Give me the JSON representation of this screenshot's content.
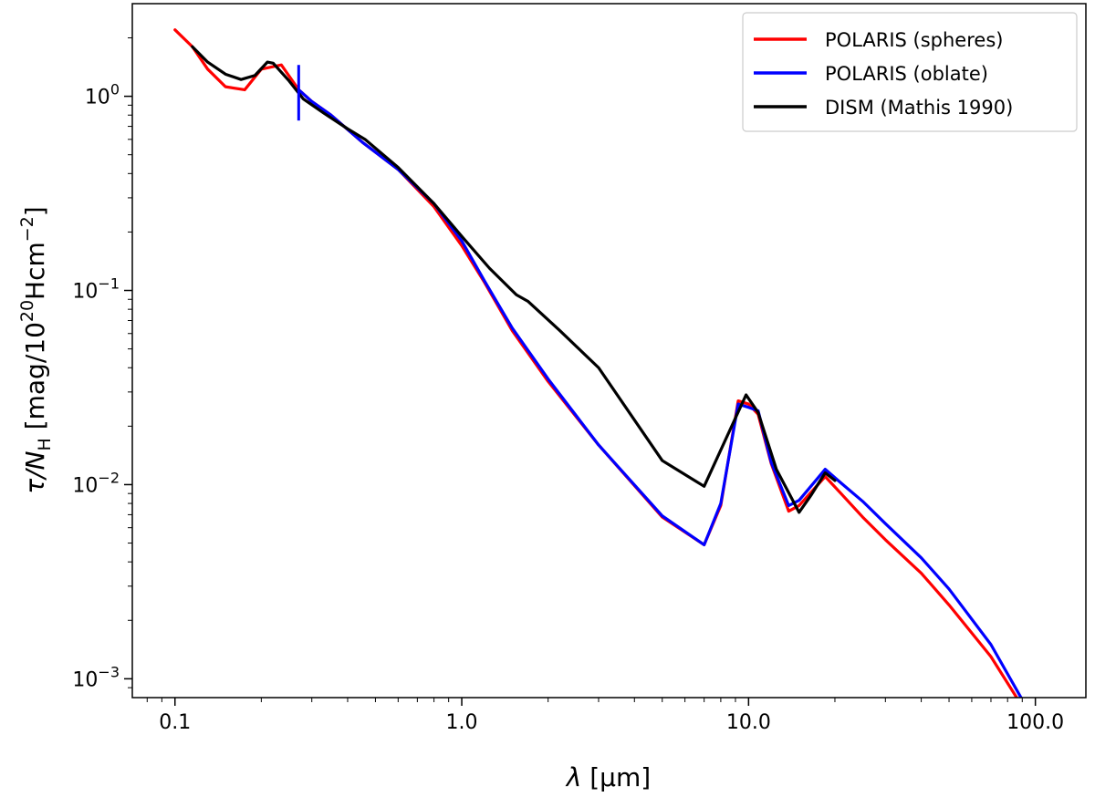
{
  "chart_data": {
    "type": "line",
    "title": "",
    "xlabel_symbol": "λ",
    "xlabel_unit": " [μm]",
    "ylabel_symbol": "τ/",
    "ylabel_N": "N",
    "ylabel_sub": "H",
    "ylabel_unit_a": " [mag/10",
    "ylabel_exp20": "20",
    "ylabel_unit_b": "Hcm",
    "ylabel_exp_m2": "−2",
    "ylabel_close": "]",
    "xscale": "log",
    "yscale": "log",
    "xlim": [
      0.071,
      150
    ],
    "ylim": [
      0.0008,
      3.0
    ],
    "grid": false,
    "legend_position": "top-right",
    "x_ticks": [
      {
        "value": 0.1,
        "label": "0.1"
      },
      {
        "value": 1.0,
        "label": "1.0"
      },
      {
        "value": 10.0,
        "label": "10.0"
      },
      {
        "value": 100.0,
        "label": "100.0"
      }
    ],
    "y_ticks": [
      {
        "value": 1.0,
        "base": "10",
        "exp": "0"
      },
      {
        "value": 0.1,
        "base": "10",
        "exp": "−1"
      },
      {
        "value": 0.01,
        "base": "10",
        "exp": "−2"
      },
      {
        "value": 0.001,
        "base": "10",
        "exp": "−3"
      }
    ],
    "series": [
      {
        "name": "POLARIS (spheres)",
        "color": "#ff0000",
        "x": [
          0.1,
          0.115,
          0.13,
          0.15,
          0.175,
          0.2,
          0.235,
          0.27,
          0.3,
          0.35,
          0.45,
          0.6,
          0.8,
          1.0,
          1.2,
          1.5,
          2.0,
          3.0,
          5.0,
          7.0,
          8.0,
          9.2,
          10.0,
          10.8,
          12.0,
          13.8,
          15.0,
          18.5,
          21.0,
          25.0,
          30.0,
          40.0,
          50.0,
          70.0,
          87.0
        ],
        "y": [
          2.2,
          1.8,
          1.38,
          1.12,
          1.08,
          1.38,
          1.45,
          1.08,
          0.94,
          0.8,
          0.58,
          0.42,
          0.27,
          0.17,
          0.11,
          0.062,
          0.034,
          0.016,
          0.0068,
          0.0049,
          0.0078,
          0.027,
          0.026,
          0.023,
          0.0128,
          0.0073,
          0.0078,
          0.011,
          0.009,
          0.0068,
          0.0052,
          0.0035,
          0.0024,
          0.0013,
          0.00078
        ]
      },
      {
        "name": "POLARIS (oblate)",
        "color": "#0000ff",
        "x": [
          0.27,
          0.3,
          0.35,
          0.45,
          0.6,
          0.8,
          1.0,
          1.2,
          1.5,
          2.0,
          3.0,
          5.0,
          7.0,
          8.0,
          9.2,
          10.0,
          10.8,
          12.0,
          13.8,
          15.0,
          18.5,
          21.0,
          25.0,
          30.0,
          40.0,
          50.0,
          70.0,
          90.0
        ],
        "y": [
          1.08,
          0.94,
          0.8,
          0.58,
          0.42,
          0.28,
          0.18,
          0.112,
          0.064,
          0.035,
          0.016,
          0.0069,
          0.0049,
          0.008,
          0.026,
          0.025,
          0.024,
          0.013,
          0.0078,
          0.0083,
          0.012,
          0.0102,
          0.0082,
          0.0063,
          0.0042,
          0.0029,
          0.0015,
          0.00078
        ]
      },
      {
        "name": "DISM (Mathis 1990)",
        "color": "#000000",
        "x": [
          0.115,
          0.13,
          0.15,
          0.17,
          0.19,
          0.21,
          0.22,
          0.25,
          0.28,
          0.33,
          0.4,
          0.46,
          0.6,
          0.8,
          1.0,
          1.25,
          1.55,
          1.7,
          2.2,
          3.0,
          5.0,
          7.0,
          9.8,
          10.8,
          12.5,
          15.0,
          16.5,
          18.5,
          20.0
        ],
        "y": [
          1.8,
          1.5,
          1.3,
          1.22,
          1.28,
          1.5,
          1.48,
          1.2,
          0.97,
          0.82,
          0.68,
          0.6,
          0.43,
          0.28,
          0.19,
          0.13,
          0.095,
          0.088,
          0.062,
          0.04,
          0.0133,
          0.0098,
          0.029,
          0.0235,
          0.012,
          0.0072,
          0.0088,
          0.0115,
          0.0105
        ]
      }
    ]
  }
}
